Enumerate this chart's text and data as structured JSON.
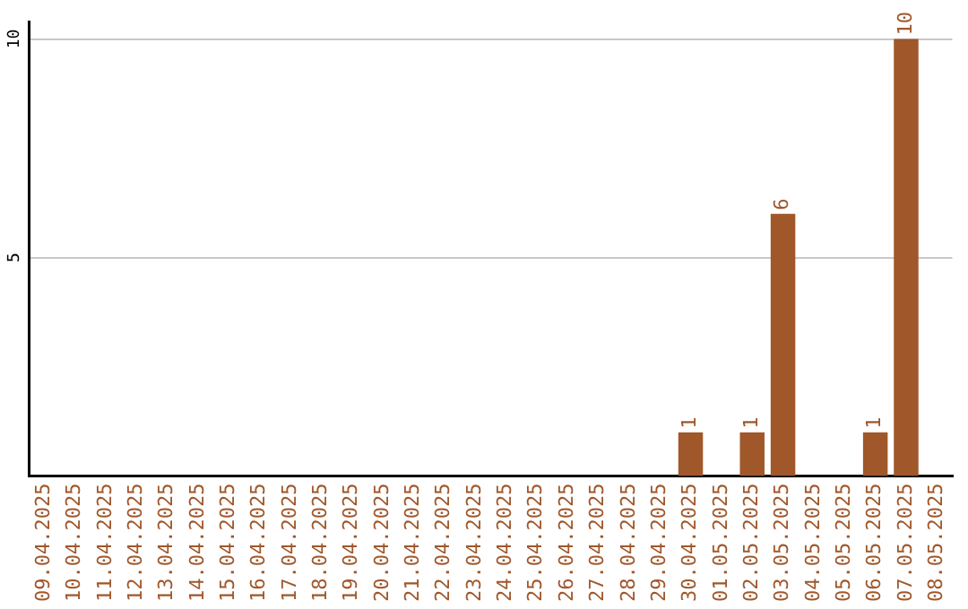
{
  "chart_data": {
    "type": "bar",
    "categories": [
      "09.04.2025",
      "10.04.2025",
      "11.04.2025",
      "12.04.2025",
      "13.04.2025",
      "14.04.2025",
      "15.04.2025",
      "16.04.2025",
      "17.04.2025",
      "18.04.2025",
      "19.04.2025",
      "20.04.2025",
      "21.04.2025",
      "22.04.2025",
      "23.04.2025",
      "24.04.2025",
      "25.04.2025",
      "26.04.2025",
      "27.04.2025",
      "28.04.2025",
      "29.04.2025",
      "30.04.2025",
      "01.05.2025",
      "02.05.2025",
      "03.05.2025",
      "04.05.2025",
      "05.05.2025",
      "06.05.2025",
      "07.05.2025",
      "08.05.2025"
    ],
    "values": [
      0,
      0,
      0,
      0,
      0,
      0,
      0,
      0,
      0,
      0,
      0,
      0,
      0,
      0,
      0,
      0,
      0,
      0,
      0,
      0,
      0,
      1,
      0,
      1,
      6,
      0,
      0,
      1,
      10,
      0
    ],
    "value_labels": [
      null,
      null,
      null,
      null,
      null,
      null,
      null,
      null,
      null,
      null,
      null,
      null,
      null,
      null,
      null,
      null,
      null,
      null,
      null,
      null,
      null,
      "1",
      null,
      "1",
      "6",
      null,
      null,
      "1",
      "10",
      null
    ],
    "color": "#a0572a",
    "ylim": [
      0,
      10.4
    ],
    "yticks": [
      5,
      10
    ],
    "grid": "y",
    "legend": false
  }
}
